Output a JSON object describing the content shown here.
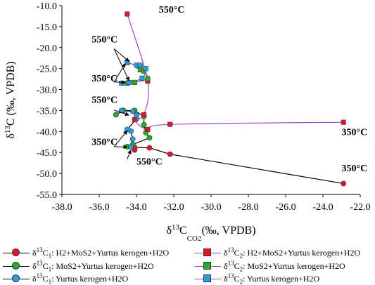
{
  "chart_data": {
    "type": "scatter",
    "xlabel_base": "δ",
    "xlabel_sup": "13",
    "xlabel_main": "C",
    "xlabel_sub": "CO2",
    "xlabel_tail": "(‰, VPDB)",
    "ylabel_base": "δ",
    "ylabel_sup": "13",
    "ylabel_tail": "C (‰, VPDB)",
    "xlim": [
      -38.0,
      -22.0
    ],
    "ylim": [
      -55.0,
      -10.0
    ],
    "x_ticks": [
      "-38.0",
      "-36.0",
      "-34.0",
      "-32.0",
      "-30.0",
      "-28.0",
      "-26.0",
      "-24.0",
      "-22.0"
    ],
    "y_ticks": [
      "-10.0",
      "-15.0",
      "-20.0",
      "-25.0",
      "-30.0",
      "-35.0",
      "-40.0",
      "-45.0",
      "-50.0",
      "-55.0"
    ],
    "series": [
      {
        "legend_sym": "δ",
        "legend_sup": "13",
        "legend_main": "C",
        "legend_sub": "1",
        "legend_tail": ": H2+MoS2+Yurtus kerogen+H2O",
        "marker": "circle",
        "color": "#e8112d",
        "line_color": "#000000",
        "x": [
          -34.1,
          -34.1,
          -33.3,
          -32.2,
          -22.9
        ],
        "y": [
          -44.4,
          -43.8,
          -43.9,
          -45.4,
          -52.4
        ]
      },
      {
        "legend_sym": "δ",
        "legend_sup": "13",
        "legend_main": "C",
        "legend_sub": "1",
        "legend_tail": ": MoS2+Yurtus kerogen+H2O",
        "marker": "circle",
        "color": "#22b022",
        "line_color": "#000000",
        "x": [
          -34.5,
          -34.2,
          -33.3,
          -33.5,
          -33.6,
          -33.6,
          -34.1,
          -34.7,
          -35.1
        ],
        "y": [
          -43.6,
          -43.1,
          -41.5,
          -40.3,
          -38.4,
          -36.4,
          -35.0,
          -35.0,
          -36.0
        ]
      },
      {
        "legend_sym": "δ",
        "legend_sup": "13",
        "legend_main": "C",
        "legend_sub": "1",
        "legend_tail": ": Yurtus kerogen+H2O",
        "marker": "circle",
        "color": "#25a0e0",
        "line_color": "#000000",
        "x": [
          -34.3,
          -34.2,
          -34.3,
          -34.5,
          -34.0,
          -34.0,
          -34.2,
          -34.8
        ],
        "y": [
          -43.6,
          -41.8,
          -39.9,
          -39.5,
          -37.0,
          -36.2,
          -35.2,
          -35.0
        ]
      },
      {
        "legend_sym": "δ",
        "legend_sup": "13",
        "legend_main": "C",
        "legend_sub": "2",
        "legend_tail": ": H2+MoS2+Yurtus kerogen+H2O",
        "marker": "square",
        "color": "#e8112d",
        "line_color": "#9b4fc1",
        "x": [
          -34.5,
          -33.4,
          -33.6,
          -34.1,
          -33.4,
          -32.2,
          -22.9
        ],
        "y": [
          -12.0,
          -28.0,
          -36.0,
          -37.2,
          -39.5,
          -38.3,
          -37.8
        ]
      },
      {
        "legend_sym": "δ",
        "legend_sup": "13",
        "legend_main": "C",
        "legend_sub": "2",
        "legend_tail": ": MoS2+Yurtus kerogen+H2O",
        "marker": "square",
        "color": "#22b022",
        "line_color": "#9b4fc1",
        "x": [
          -34.5,
          -33.9,
          -33.8,
          -33.6,
          -33.4,
          -34.1,
          -34.5
        ],
        "y": [
          -23.6,
          -24.4,
          -25.3,
          -25.6,
          -27.4,
          -28.3,
          -28.5
        ]
      },
      {
        "legend_sym": "δ",
        "legend_sup": "13",
        "legend_main": "C",
        "legend_sub": "2",
        "legend_tail": ": Yurtus kerogen+H2O",
        "marker": "square",
        "color": "#25a0e0",
        "line_color": "#9b4fc1",
        "x": [
          -34.5,
          -34.0,
          -33.8,
          -33.5,
          -33.7,
          -34.4,
          -34.8
        ],
        "y": [
          -23.6,
          -24.2,
          -24.2,
          -25.0,
          -27.3,
          -28.3,
          -28.5
        ]
      }
    ],
    "annotations": [
      {
        "text": "550°C",
        "x": -32.8,
        "y": -11.7
      },
      {
        "text": "550°C",
        "x": -36.4,
        "y": -18.8
      },
      {
        "text": "350°C",
        "x": -36.4,
        "y": -28.1
      },
      {
        "text": "550°C",
        "x": -36.4,
        "y": -33.2
      },
      {
        "text": "350°C",
        "x": -36.4,
        "y": -43.2
      },
      {
        "text": "550°C",
        "x": -34.0,
        "y": -47.9
      },
      {
        "text": "350°C",
        "x": -23.0,
        "y": -40.9
      },
      {
        "text": "350°C",
        "x": -23.0,
        "y": -49.5
      }
    ]
  }
}
